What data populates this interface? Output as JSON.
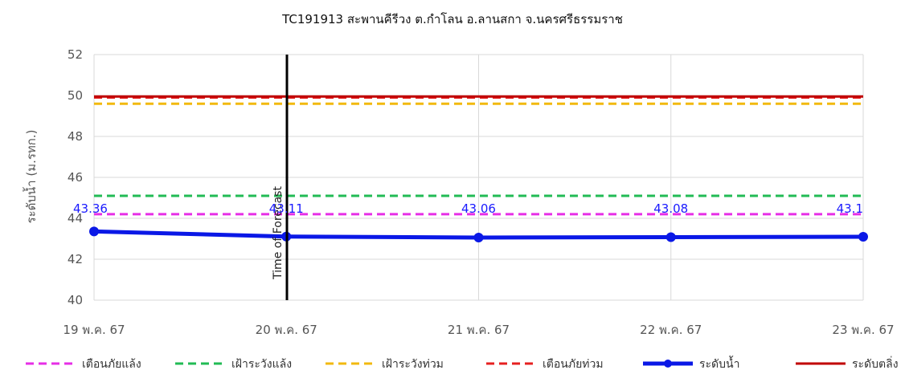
{
  "chart_data": {
    "type": "line",
    "title": "TC191913 สะพานคีรีวง ต.กำโลน อ.ลานสกา จ.นครศรีธรรมราช",
    "xlabel": "",
    "ylabel": "ระดับน้ำ (ม.รทก.)",
    "ylim": [
      40,
      52
    ],
    "yticks": [
      40,
      42,
      44,
      46,
      48,
      50,
      52
    ],
    "categories": [
      "19 พ.ค. 67",
      "20 พ.ค. 67",
      "21 พ.ค. 67",
      "22 พ.ค. 67",
      "23 พ.ค. 67"
    ],
    "grid": true,
    "legend_position": "bottom",
    "series": [
      {
        "name": "เตือนภัยแล้ง",
        "style": "dashed",
        "color": "#e62ee6",
        "values": [
          44.2,
          44.2,
          44.2,
          44.2,
          44.2
        ]
      },
      {
        "name": "เฝ้าระวังแล้ง",
        "style": "dashed",
        "color": "#22bb55",
        "values": [
          45.1,
          45.1,
          45.1,
          45.1,
          45.1
        ]
      },
      {
        "name": "เฝ้าระวังท่วม",
        "style": "dashed",
        "color": "#f2b90f",
        "values": [
          49.6,
          49.6,
          49.6,
          49.6,
          49.6
        ]
      },
      {
        "name": "เตือนภัยท่วม",
        "style": "dashed",
        "color": "#e62020",
        "values": [
          49.9,
          49.9,
          49.9,
          49.9,
          49.9
        ]
      },
      {
        "name": "ระดับน้ำ",
        "style": "line-marker",
        "color": "#0a18e6",
        "values": [
          43.36,
          43.11,
          43.06,
          43.08,
          43.1
        ],
        "labels": [
          "43.36",
          "43.11",
          "43.06",
          "43.08",
          "43.1"
        ]
      },
      {
        "name": "ระดับตลิ่ง",
        "style": "solid",
        "color": "#c00000",
        "values": [
          49.95,
          49.95,
          49.95,
          49.95,
          49.95
        ]
      }
    ],
    "annotation": {
      "label": "Time of Forecast",
      "x": "20 พ.ค. 67"
    }
  }
}
